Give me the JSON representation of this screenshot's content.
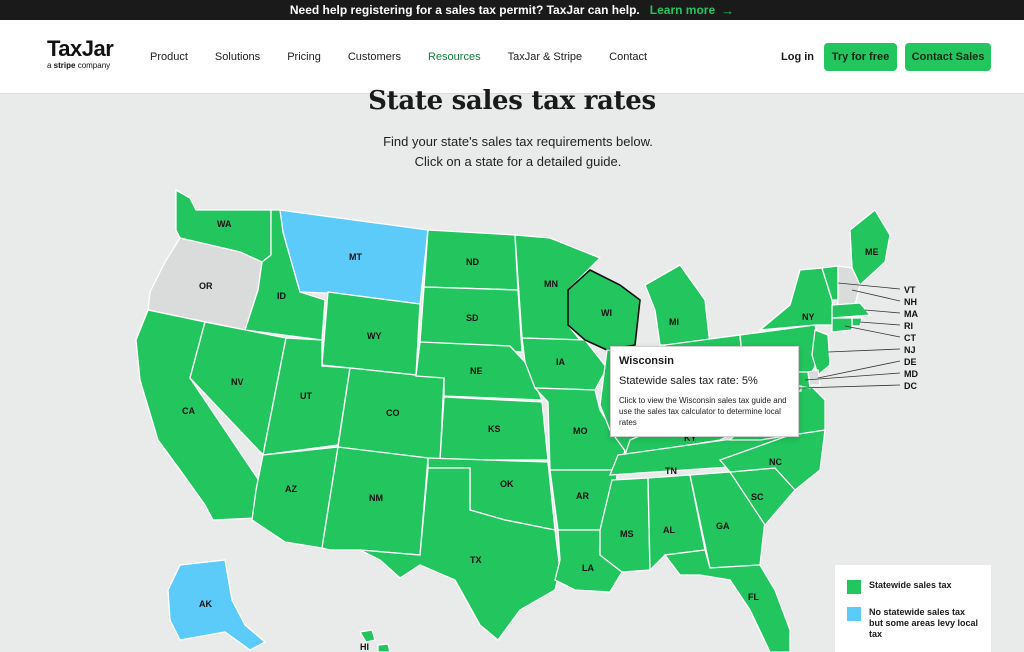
{
  "banner": {
    "text": "Need help registering for a sales tax permit? TaxJar can help.",
    "link": "Learn more",
    "arrow": "→"
  },
  "logo": {
    "name": "TaxJar",
    "sub_prefix": "a ",
    "sub_brand": "stripe",
    "sub_suffix": " company"
  },
  "nav": {
    "items": [
      "Product",
      "Solutions",
      "Pricing",
      "Customers",
      "Resources",
      "TaxJar & Stripe",
      "Contact"
    ],
    "active": "Resources",
    "login": "Log in",
    "try": "Try for free",
    "contact_sales": "Contact Sales"
  },
  "page": {
    "title": "State sales tax rates",
    "subtitle1": "Find your state's sales tax requirements below.",
    "subtitle2": "Click on a state for a detailed guide."
  },
  "map": {
    "colors": {
      "statewide": "#22c55e",
      "no_statewide": "#5ccbf9",
      "no_tax": "#d9dcda"
    },
    "states": [
      {
        "code": "WA",
        "category": "statewide"
      },
      {
        "code": "OR",
        "category": "no_tax"
      },
      {
        "code": "CA",
        "category": "statewide"
      },
      {
        "code": "ID",
        "category": "statewide"
      },
      {
        "code": "NV",
        "category": "statewide"
      },
      {
        "code": "MT",
        "category": "no_statewide"
      },
      {
        "code": "WY",
        "category": "statewide"
      },
      {
        "code": "UT",
        "category": "statewide"
      },
      {
        "code": "CO",
        "category": "statewide"
      },
      {
        "code": "AZ",
        "category": "statewide"
      },
      {
        "code": "NM",
        "category": "statewide"
      },
      {
        "code": "ND",
        "category": "statewide"
      },
      {
        "code": "SD",
        "category": "statewide"
      },
      {
        "code": "NE",
        "category": "statewide"
      },
      {
        "code": "KS",
        "category": "statewide"
      },
      {
        "code": "OK",
        "category": "statewide"
      },
      {
        "code": "TX",
        "category": "statewide"
      },
      {
        "code": "MN",
        "category": "statewide"
      },
      {
        "code": "IA",
        "category": "statewide"
      },
      {
        "code": "MO",
        "category": "statewide"
      },
      {
        "code": "AR",
        "category": "statewide"
      },
      {
        "code": "LA",
        "category": "statewide"
      },
      {
        "code": "WI",
        "category": "statewide"
      },
      {
        "code": "MI",
        "category": "statewide"
      },
      {
        "code": "IL",
        "category": "statewide"
      },
      {
        "code": "IN",
        "category": "statewide"
      },
      {
        "code": "OH",
        "category": "statewide"
      },
      {
        "code": "KY",
        "category": "statewide"
      },
      {
        "code": "TN",
        "category": "statewide"
      },
      {
        "code": "MS",
        "category": "statewide"
      },
      {
        "code": "AL",
        "category": "statewide"
      },
      {
        "code": "GA",
        "category": "statewide"
      },
      {
        "code": "FL",
        "category": "statewide"
      },
      {
        "code": "SC",
        "category": "statewide"
      },
      {
        "code": "NC",
        "category": "statewide"
      },
      {
        "code": "VA",
        "category": "statewide"
      },
      {
        "code": "WV",
        "category": "statewide"
      },
      {
        "code": "PA",
        "category": "statewide"
      },
      {
        "code": "NY",
        "category": "statewide"
      },
      {
        "code": "ME",
        "category": "statewide"
      },
      {
        "code": "VT",
        "category": "statewide"
      },
      {
        "code": "NH",
        "category": "no_tax"
      },
      {
        "code": "MA",
        "category": "statewide"
      },
      {
        "code": "RI",
        "category": "statewide"
      },
      {
        "code": "CT",
        "category": "statewide"
      },
      {
        "code": "NJ",
        "category": "statewide"
      },
      {
        "code": "DE",
        "category": "no_tax"
      },
      {
        "code": "MD",
        "category": "statewide"
      },
      {
        "code": "DC",
        "category": "statewide"
      },
      {
        "code": "AK",
        "category": "no_statewide"
      },
      {
        "code": "HI",
        "category": "statewide"
      }
    ],
    "labels": [
      "WA",
      "OR",
      "CA",
      "ID",
      "NV",
      "MT",
      "WY",
      "UT",
      "CO",
      "AZ",
      "NM",
      "ND",
      "SD",
      "NE",
      "KS",
      "OK",
      "TX",
      "MN",
      "IA",
      "MO",
      "AR",
      "LA",
      "WI",
      "MI",
      "KY",
      "TN",
      "MS",
      "AL",
      "GA",
      "FL",
      "SC",
      "NC",
      "NY",
      "ME",
      "AK",
      "HI"
    ],
    "small_labels": [
      "VT",
      "NH",
      "MA",
      "RI",
      "CT",
      "NJ",
      "DE",
      "MD",
      "DC"
    ]
  },
  "tooltip": {
    "state": "Wisconsin",
    "rate": "Statewide sales tax rate: 5%",
    "description": "Click to view the Wisconsin sales tax guide and use the sales tax calculator to determine local rates"
  },
  "legend": {
    "items": [
      {
        "label": "Statewide sales tax",
        "color": "#22c55e"
      },
      {
        "label": "No statewide sales tax but some areas levy local tax",
        "color": "#5ccbf9"
      }
    ]
  }
}
